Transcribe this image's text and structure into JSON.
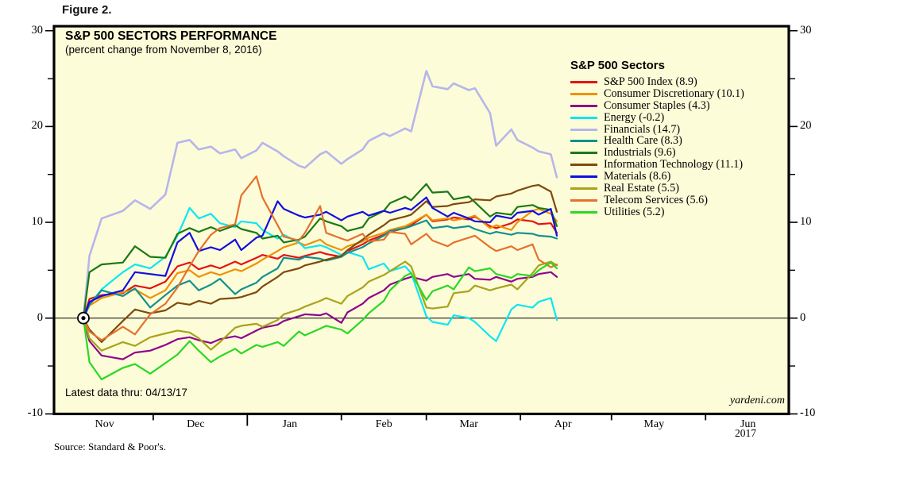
{
  "figure_label": "Figure 2.",
  "chart": {
    "title": "S&P 500 SECTORS PERFORMANCE",
    "subtitle": "(percent change from November 8, 2016)",
    "annotation": "Latest data thru: 04/13/17",
    "watermark": "yardeni.com",
    "source": "Source: Standard & Poor's.",
    "year_label": "2017",
    "legend_title": "S&P 500 Sectors"
  },
  "chart_data": {
    "type": "line",
    "title": "S&P 500 SECTORS PERFORMANCE",
    "subtitle": "(percent change from November 8, 2016)",
    "x_unit": "trading days since 2016-11-08",
    "background": "#fdfcd8",
    "grid": "zero-line-only",
    "legend_position": "upper-right-inside",
    "x": [
      0,
      2,
      6,
      13,
      17,
      22,
      27,
      31,
      35,
      38,
      42,
      45,
      50,
      52,
      57,
      59,
      64,
      66,
      71,
      73,
      78,
      80,
      85,
      87,
      92,
      94,
      99,
      101,
      106,
      108,
      113,
      115,
      120,
      122,
      127,
      129,
      134,
      136,
      141,
      143,
      148,
      150,
      154,
      156
    ],
    "y_axis": {
      "ticks": [
        30,
        20,
        10,
        0,
        -10
      ],
      "minor_ticks": [
        25,
        15,
        5,
        -5
      ],
      "range": [
        -10,
        30.5
      ]
    },
    "x_axis": {
      "months": [
        {
          "label": "Nov",
          "mid_day": 7
        },
        {
          "label": "Dec",
          "mid_day": 37
        },
        {
          "label": "Jan",
          "mid_day": 68
        },
        {
          "label": "Feb",
          "mid_day": 99
        },
        {
          "label": "Mar",
          "mid_day": 127
        },
        {
          "label": "Apr",
          "mid_day": 158
        },
        {
          "label": "May",
          "mid_day": 188
        },
        {
          "label": "Jun",
          "mid_day": 219
        }
      ],
      "month_tick_days": [
        23,
        54,
        85,
        113,
        144,
        174,
        205
      ],
      "year_tick_day": 54
    },
    "origin_marker": {
      "day": 0,
      "value": 0
    },
    "series": [
      {
        "name": "S&P 500 Index",
        "legend_label": "S&P 500 Index (8.9)",
        "final": 8.9,
        "color": "#e41311",
        "values": [
          0,
          2.0,
          2.4,
          2.6,
          3.4,
          3.1,
          3.8,
          5.4,
          5.8,
          5.1,
          5.5,
          5.2,
          5.9,
          5.6,
          6.3,
          6.6,
          6.2,
          6.6,
          6.3,
          6.5,
          6.9,
          6.7,
          6.4,
          7.0,
          7.7,
          8.1,
          8.7,
          9.0,
          9.4,
          9.7,
          10.8,
          10.1,
          10.3,
          10.5,
          10.3,
          10.6,
          9.6,
          9.4,
          9.9,
          10.3,
          10.1,
          9.8,
          9.9,
          8.9
        ]
      },
      {
        "name": "Consumer Discretionary",
        "legend_label": "Consumer Discretionary (10.1)",
        "final": 10.1,
        "color": "#ef9104",
        "values": [
          0,
          1.3,
          2.1,
          2.7,
          3.0,
          2.1,
          2.9,
          4.7,
          5.0,
          4.3,
          4.8,
          4.5,
          5.1,
          4.9,
          5.7,
          6.1,
          7.0,
          7.4,
          7.9,
          7.6,
          8.2,
          7.7,
          7.1,
          7.5,
          8.0,
          8.4,
          8.9,
          9.2,
          9.6,
          9.9,
          10.8,
          10.2,
          10.4,
          10.2,
          10.5,
          10.7,
          9.4,
          9.7,
          9.2,
          10.0,
          11.2,
          11.4,
          10.9,
          10.1
        ]
      },
      {
        "name": "Consumer Staples",
        "legend_label": "Consumer Staples (4.3)",
        "final": 4.3,
        "color": "#8d058d",
        "values": [
          0,
          -2.4,
          -3.9,
          -4.3,
          -3.6,
          -3.4,
          -2.8,
          -2.2,
          -2.0,
          -2.3,
          -2.6,
          -2.2,
          -1.9,
          -2.1,
          -1.3,
          -1.0,
          -0.7,
          -0.3,
          0.2,
          0.4,
          0.3,
          0.5,
          -0.5,
          0.6,
          1.5,
          2.1,
          2.9,
          3.5,
          4.1,
          4.3,
          3.9,
          4.3,
          4.6,
          4.3,
          4.6,
          4.1,
          4.0,
          4.3,
          3.8,
          4.1,
          4.3,
          4.6,
          4.8,
          4.3
        ]
      },
      {
        "name": "Energy",
        "legend_label": "Energy (-0.2)",
        "final": -0.2,
        "color": "#0ce6f2",
        "values": [
          0,
          1.4,
          3.0,
          4.8,
          5.6,
          5.2,
          6.4,
          8.6,
          11.5,
          10.4,
          10.9,
          9.9,
          9.5,
          10.1,
          9.9,
          9.2,
          8.3,
          8.7,
          7.9,
          7.3,
          7.6,
          7.4,
          6.6,
          6.9,
          6.4,
          5.1,
          5.7,
          4.9,
          5.4,
          4.7,
          0.2,
          -0.4,
          -0.7,
          0.3,
          0.0,
          -0.4,
          -1.9,
          -2.4,
          0.9,
          1.4,
          1.1,
          1.7,
          2.1,
          -0.2
        ]
      },
      {
        "name": "Financials",
        "legend_label": "Financials (14.7)",
        "final": 14.7,
        "color": "#b7b5ec",
        "values": [
          0,
          6.5,
          10.4,
          11.2,
          12.3,
          11.4,
          12.9,
          18.3,
          18.6,
          17.6,
          17.9,
          17.2,
          17.6,
          16.7,
          17.5,
          18.3,
          17.4,
          16.9,
          15.9,
          15.7,
          17.1,
          17.4,
          16.1,
          16.6,
          17.6,
          18.5,
          19.3,
          19.0,
          19.8,
          19.5,
          25.8,
          24.2,
          23.9,
          24.5,
          23.8,
          24.0,
          21.4,
          18.0,
          19.7,
          18.6,
          17.8,
          17.4,
          17.1,
          14.7
        ]
      },
      {
        "name": "Health Care",
        "legend_label": "Health Care (8.3)",
        "final": 8.3,
        "color": "#12918e",
        "values": [
          0,
          1.4,
          2.9,
          2.3,
          3.1,
          1.1,
          2.4,
          3.4,
          3.9,
          2.9,
          3.5,
          4.1,
          2.5,
          3.0,
          3.7,
          4.3,
          5.2,
          6.3,
          6.1,
          6.4,
          6.2,
          6.0,
          6.4,
          6.8,
          7.4,
          7.8,
          8.6,
          9.1,
          9.4,
          9.6,
          10.2,
          9.4,
          9.6,
          9.4,
          9.6,
          9.3,
          8.8,
          9.0,
          8.7,
          8.9,
          8.8,
          8.6,
          8.5,
          8.3
        ]
      },
      {
        "name": "Industrials",
        "legend_label": "Industrials (9.6)",
        "final": 9.6,
        "color": "#1a7a16",
        "values": [
          0,
          4.8,
          5.6,
          5.8,
          7.5,
          6.4,
          6.3,
          8.8,
          9.4,
          9.0,
          9.5,
          9.1,
          9.7,
          9.3,
          8.9,
          8.3,
          8.6,
          7.9,
          8.2,
          8.5,
          10.4,
          10.1,
          9.6,
          9.1,
          9.5,
          10.4,
          11.2,
          12.0,
          12.7,
          12.3,
          14.0,
          13.1,
          13.2,
          12.4,
          12.7,
          12.1,
          10.6,
          11.0,
          10.8,
          11.6,
          11.8,
          11.5,
          11.3,
          9.6
        ]
      },
      {
        "name": "Information Technology",
        "legend_label": "Information Technology (11.1)",
        "final": 11.1,
        "color": "#7e4b0d",
        "values": [
          0,
          -1.2,
          -2.5,
          -0.3,
          0.9,
          0.5,
          0.8,
          1.6,
          1.4,
          1.8,
          1.5,
          2.0,
          2.1,
          2.2,
          2.7,
          3.3,
          4.3,
          4.8,
          5.2,
          5.5,
          5.9,
          6.1,
          6.5,
          7.1,
          8.2,
          8.7,
          9.7,
          10.2,
          10.6,
          10.8,
          12.2,
          11.6,
          11.7,
          11.9,
          12.1,
          12.4,
          12.3,
          12.7,
          13.0,
          13.3,
          13.8,
          13.9,
          13.2,
          11.1
        ]
      },
      {
        "name": "Materials",
        "legend_label": "Materials (8.6)",
        "final": 8.6,
        "color": "#120ee0",
        "values": [
          0,
          1.7,
          2.3,
          2.9,
          4.8,
          4.6,
          4.4,
          7.9,
          8.9,
          7.0,
          7.4,
          7.1,
          8.2,
          7.1,
          8.4,
          8.6,
          12.2,
          11.4,
          10.7,
          10.5,
          10.8,
          11.1,
          10.2,
          10.6,
          11.1,
          10.7,
          11.2,
          11.0,
          11.5,
          11.3,
          12.6,
          11.5,
          10.6,
          11.0,
          10.4,
          10.1,
          10.0,
          10.7,
          10.4,
          11.0,
          11.2,
          10.8,
          11.4,
          8.6
        ]
      },
      {
        "name": "Real Estate",
        "legend_label": "Real Estate (5.5)",
        "final": 5.5,
        "color": "#a8a31b",
        "values": [
          0,
          -2.1,
          -3.4,
          -2.5,
          -2.9,
          -2.0,
          -1.6,
          -1.3,
          -1.5,
          -2.1,
          -3.3,
          -2.5,
          -1.0,
          -0.8,
          -0.6,
          -0.9,
          -0.2,
          0.4,
          0.9,
          1.2,
          1.8,
          2.1,
          1.5,
          2.3,
          3.2,
          3.8,
          4.5,
          4.9,
          5.9,
          5.4,
          1.1,
          1.0,
          1.2,
          2.6,
          2.8,
          3.4,
          2.9,
          3.1,
          3.5,
          3.0,
          4.7,
          5.5,
          5.9,
          5.5
        ]
      },
      {
        "name": "Telecom Services",
        "legend_label": "Telecom Services (5.6)",
        "final": 5.6,
        "color": "#e4712e",
        "values": [
          0,
          -1.4,
          -2.3,
          -0.9,
          -1.7,
          0.4,
          1.5,
          3.2,
          5.4,
          7.0,
          8.7,
          9.4,
          9.8,
          12.8,
          14.8,
          12.6,
          9.7,
          8.5,
          8.1,
          8.9,
          11.7,
          8.9,
          8.3,
          8.1,
          8.8,
          8.0,
          8.2,
          9.0,
          8.8,
          7.7,
          8.8,
          8.1,
          7.5,
          7.9,
          8.4,
          8.6,
          7.4,
          7.0,
          7.5,
          7.1,
          7.7,
          6.1,
          5.3,
          5.6
        ]
      },
      {
        "name": "Utilities",
        "legend_label": "Utilities (5.2)",
        "final": 5.2,
        "color": "#2ad825",
        "values": [
          0,
          -4.6,
          -6.4,
          -5.2,
          -4.8,
          -5.8,
          -4.7,
          -3.8,
          -2.4,
          -3.4,
          -4.6,
          -4.0,
          -3.2,
          -3.7,
          -2.8,
          -3.0,
          -2.5,
          -2.9,
          -1.4,
          -1.8,
          -1.1,
          -0.8,
          -1.2,
          -1.6,
          -0.2,
          0.5,
          1.8,
          2.9,
          4.4,
          4.7,
          1.9,
          2.8,
          3.4,
          3.0,
          5.3,
          4.9,
          5.2,
          4.6,
          4.2,
          4.6,
          4.4,
          5.0,
          5.8,
          5.2
        ]
      }
    ]
  }
}
